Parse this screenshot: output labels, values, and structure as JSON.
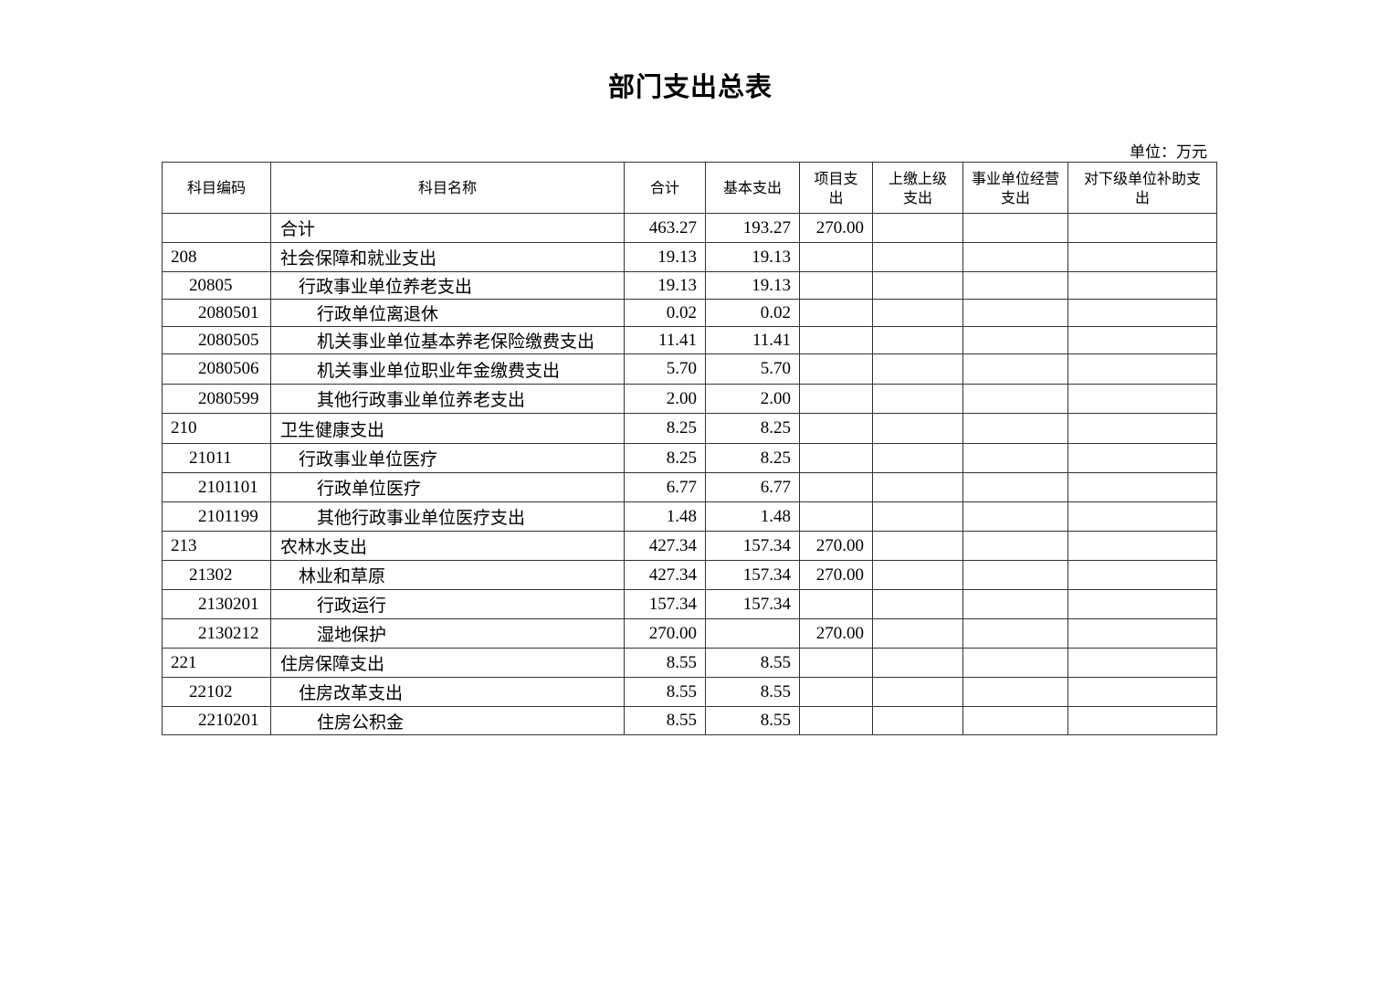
{
  "title": "部门支出总表",
  "unit": "单位：万元",
  "headers": [
    "科目编码",
    "科目名称",
    "合计",
    "基本支出",
    "项目支出",
    "上缴上级支出",
    "事业单位经营支出",
    "对下级单位补助支出"
  ],
  "rows": [
    {
      "level": 0,
      "code": "",
      "name": "合计",
      "total": "463.27",
      "basic": "193.27",
      "project": "270.00",
      "upper": "",
      "business": "",
      "subsidy": ""
    },
    {
      "level": 1,
      "code": "208",
      "name": "社会保障和就业支出",
      "total": "19.13",
      "basic": "19.13",
      "project": "",
      "upper": "",
      "business": "",
      "subsidy": ""
    },
    {
      "level": 2,
      "code": "20805",
      "name": "行政事业单位养老支出",
      "total": "19.13",
      "basic": "19.13",
      "project": "",
      "upper": "",
      "business": "",
      "subsidy": ""
    },
    {
      "level": 3,
      "code": "2080501",
      "name": "行政单位离退休",
      "total": "0.02",
      "basic": "0.02",
      "project": "",
      "upper": "",
      "business": "",
      "subsidy": ""
    },
    {
      "level": 3,
      "code": "2080505",
      "name": "机关事业单位基本养老保险缴费支出",
      "total": "11.41",
      "basic": "11.41",
      "project": "",
      "upper": "",
      "business": "",
      "subsidy": ""
    },
    {
      "level": 3,
      "code": "2080506",
      "name": "机关事业单位职业年金缴费支出",
      "total": "5.70",
      "basic": "5.70",
      "project": "",
      "upper": "",
      "business": "",
      "subsidy": ""
    },
    {
      "level": 3,
      "code": "2080599",
      "name": "其他行政事业单位养老支出",
      "total": "2.00",
      "basic": "2.00",
      "project": "",
      "upper": "",
      "business": "",
      "subsidy": ""
    },
    {
      "level": 1,
      "code": "210",
      "name": "卫生健康支出",
      "total": "8.25",
      "basic": "8.25",
      "project": "",
      "upper": "",
      "business": "",
      "subsidy": ""
    },
    {
      "level": 2,
      "code": "21011",
      "name": "行政事业单位医疗",
      "total": "8.25",
      "basic": "8.25",
      "project": "",
      "upper": "",
      "business": "",
      "subsidy": ""
    },
    {
      "level": 3,
      "code": "2101101",
      "name": "行政单位医疗",
      "total": "6.77",
      "basic": "6.77",
      "project": "",
      "upper": "",
      "business": "",
      "subsidy": ""
    },
    {
      "level": 3,
      "code": "2101199",
      "name": "其他行政事业单位医疗支出",
      "total": "1.48",
      "basic": "1.48",
      "project": "",
      "upper": "",
      "business": "",
      "subsidy": ""
    },
    {
      "level": 1,
      "code": "213",
      "name": "农林水支出",
      "total": "427.34",
      "basic": "157.34",
      "project": "270.00",
      "upper": "",
      "business": "",
      "subsidy": ""
    },
    {
      "level": 2,
      "code": "21302",
      "name": "林业和草原",
      "total": "427.34",
      "basic": "157.34",
      "project": "270.00",
      "upper": "",
      "business": "",
      "subsidy": ""
    },
    {
      "level": 3,
      "code": "2130201",
      "name": "行政运行",
      "total": "157.34",
      "basic": "157.34",
      "project": "",
      "upper": "",
      "business": "",
      "subsidy": ""
    },
    {
      "level": 3,
      "code": "2130212",
      "name": "湿地保护",
      "total": "270.00",
      "basic": "",
      "project": "270.00",
      "upper": "",
      "business": "",
      "subsidy": ""
    },
    {
      "level": 1,
      "code": "221",
      "name": "住房保障支出",
      "total": "8.55",
      "basic": "8.55",
      "project": "",
      "upper": "",
      "business": "",
      "subsidy": ""
    },
    {
      "level": 2,
      "code": "22102",
      "name": "住房改革支出",
      "total": "8.55",
      "basic": "8.55",
      "project": "",
      "upper": "",
      "business": "",
      "subsidy": ""
    },
    {
      "level": 3,
      "code": "2210201",
      "name": "住房公积金",
      "total": "8.55",
      "basic": "8.55",
      "project": "",
      "upper": "",
      "business": "",
      "subsidy": ""
    }
  ]
}
